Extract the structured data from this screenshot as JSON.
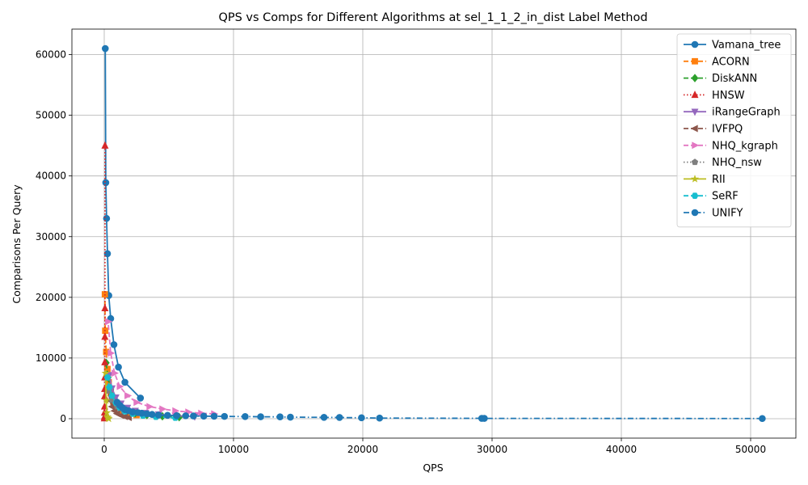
{
  "chart_data": {
    "type": "line",
    "title": "QPS vs Comps for Different Algorithms at sel_1_1_2_in_dist Label Method",
    "xlabel": "QPS",
    "ylabel": "Comparisons Per Query",
    "xlim": [
      -2500,
      53500
    ],
    "ylim": [
      -3200,
      64200
    ],
    "xticks": [
      0,
      10000,
      20000,
      30000,
      40000,
      50000
    ],
    "yticks": [
      0,
      10000,
      20000,
      30000,
      40000,
      50000,
      60000
    ],
    "grid": true,
    "legend_position": "top-right",
    "series": [
      {
        "name": "Vamana_tree",
        "color": "#1f77b4",
        "marker": "circle",
        "dash": "solid",
        "x": [
          2800,
          1600,
          1100,
          750,
          500,
          350,
          250,
          180,
          120,
          80
        ],
        "y": [
          3400,
          6000,
          8500,
          12200,
          16500,
          20300,
          27200,
          33000,
          38900,
          61000
        ]
      },
      {
        "name": "ACORN",
        "color": "#ff7f0e",
        "marker": "square",
        "dash": "dashed",
        "x": [
          2500,
          1900,
          1400,
          1000,
          700,
          500,
          350,
          250,
          150,
          80,
          50
        ],
        "y": [
          600,
          900,
          1300,
          1900,
          2800,
          4200,
          6000,
          8200,
          11000,
          14500,
          20500
        ]
      },
      {
        "name": "DiskANN",
        "color": "#2ca02c",
        "marker": "diamond",
        "dash": "dashed",
        "x": [
          5800,
          4500,
          3300,
          2400,
          1700,
          1200,
          800,
          500,
          300,
          150
        ],
        "y": [
          250,
          400,
          600,
          900,
          1400,
          2100,
          3200,
          4800,
          6800,
          9200
        ]
      },
      {
        "name": "HNSW",
        "color": "#d62728",
        "marker": "triangle-up",
        "dash": "dotted",
        "x": [
          60,
          55,
          50,
          45,
          40,
          35,
          30,
          25,
          20,
          15,
          10
        ],
        "y": [
          45000,
          18200,
          13500,
          9300,
          6800,
          4900,
          3700,
          2000,
          1000,
          300,
          50
        ]
      },
      {
        "name": "iRangeGraph",
        "color": "#9467bd",
        "marker": "triangle-down",
        "dash": "solid",
        "x": [
          7000,
          5500,
          4200,
          3200,
          2400,
          1800,
          1300,
          900,
          600,
          400
        ],
        "y": [
          350,
          500,
          700,
          950,
          1300,
          1800,
          2500,
          3500,
          5000,
          7200
        ]
      },
      {
        "name": "IVFPQ",
        "color": "#8c564b",
        "marker": "triangle-left",
        "dash": "dashed",
        "x": [
          1900,
          1600,
          1300,
          1000,
          800,
          600,
          450,
          300
        ],
        "y": [
          200,
          350,
          550,
          850,
          1300,
          2000,
          3000,
          4500
        ]
      },
      {
        "name": "NHQ_kgraph",
        "color": "#e377c2",
        "marker": "triangle-right",
        "dash": "dashed",
        "x": [
          8500,
          7500,
          6500,
          5500,
          4500,
          3500,
          2500,
          1800,
          1200,
          800,
          500,
          300
        ],
        "y": [
          800,
          900,
          1100,
          1300,
          1600,
          2000,
          2700,
          3800,
          5300,
          7500,
          10800,
          16000
        ]
      },
      {
        "name": "NHQ_nsw",
        "color": "#7f7f7f",
        "marker": "pentagon",
        "dash": "dotted",
        "x": [
          4000,
          3000,
          2200,
          1500,
          1000,
          600,
          350
        ],
        "y": [
          350,
          550,
          850,
          1300,
          2000,
          3100,
          4600
        ]
      },
      {
        "name": "RII",
        "color": "#bcbd22",
        "marker": "star",
        "dash": "solid",
        "x": [
          350,
          300,
          250,
          200,
          150,
          100
        ],
        "y": [
          0,
          100,
          300,
          1000,
          3000,
          7500
        ]
      },
      {
        "name": "SeRF",
        "color": "#17becf",
        "marker": "hexagon",
        "dash": "dashed",
        "x": [
          5500,
          4000,
          3000,
          2200,
          1600,
          1200,
          900,
          600,
          400,
          250
        ],
        "y": [
          150,
          300,
          500,
          800,
          1200,
          1800,
          2600,
          3800,
          5200,
          6800
        ]
      },
      {
        "name": "UNIFY",
        "color": "#1f77b4",
        "marker": "circle",
        "dash": "dashdot",
        "x": [
          50900,
          29400,
          29200,
          21300,
          19900,
          18200,
          17000,
          14400,
          13600,
          12100,
          10900,
          9300,
          8500,
          7700,
          6900,
          6300,
          5600,
          4900,
          4200,
          3700,
          3300,
          2900,
          2600,
          2200,
          1900,
          1600,
          1400,
          1200,
          1000
        ],
        "y": [
          30,
          50,
          60,
          100,
          150,
          200,
          220,
          250,
          300,
          320,
          350,
          380,
          400,
          420,
          450,
          480,
          500,
          550,
          600,
          700,
          800,
          900,
          1000,
          1100,
          1300,
          1500,
          1800,
          2200,
          2700
        ]
      }
    ]
  }
}
